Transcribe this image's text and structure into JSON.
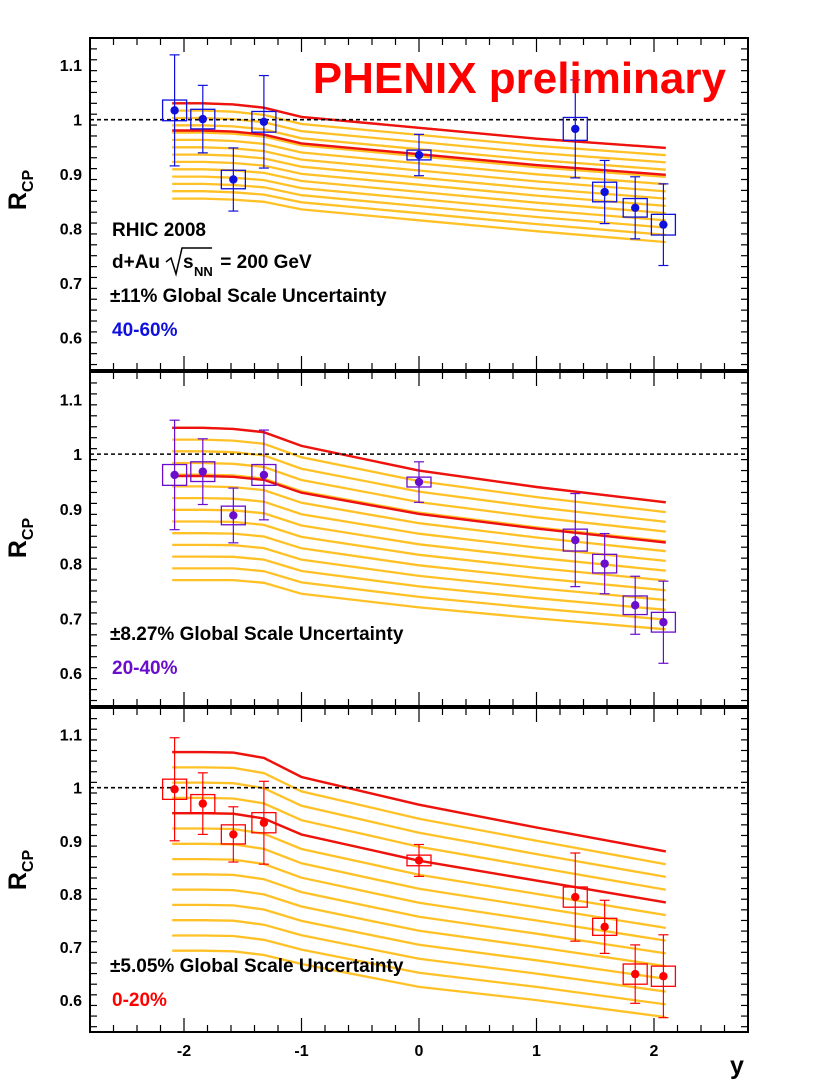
{
  "figure_label": "PHENIX preliminary",
  "colors": {
    "frame": "#000000",
    "band": "#FFC125",
    "band_edge": "#EE1111",
    "label_red": "#FF0000",
    "peripheral": "#1010DD",
    "mid": "#6A0DCC",
    "central": "#FF0000"
  },
  "chart_data": [
    {
      "type": "scatter",
      "panel": "40-60%",
      "ylabel_main": "R",
      "ylabel_sub": "CP",
      "ylim": [
        0.54,
        1.15
      ],
      "xlim": [
        -2.8,
        2.8
      ],
      "yticks": [
        0.6,
        0.7,
        0.8,
        0.9,
        1.0,
        1.1
      ],
      "ytick_labels": [
        "0.6",
        "0.7",
        "0.8",
        "0.9",
        "1",
        "1.1"
      ],
      "reference_line": 1.0,
      "text_lines": [
        "RHIC 2008",
        "d+Au",
        "s",
        "NN",
        " = 200 GeV",
        "±11% Global Scale Uncertainty"
      ],
      "centrality_label": "40-60%",
      "x": [
        -2.08,
        -1.84,
        -1.58,
        -1.32,
        0.0,
        1.33,
        1.58,
        1.84,
        2.08
      ],
      "y": [
        1.017,
        1.001,
        0.89,
        0.996,
        0.935,
        0.983,
        0.867,
        0.838,
        0.807
      ],
      "stat_err": [
        0.102,
        0.062,
        0.058,
        0.085,
        0.038,
        0.09,
        0.058,
        0.057,
        0.075
      ],
      "sys_err": [
        0.019,
        0.018,
        0.017,
        0.019,
        0.009,
        0.021,
        0.018,
        0.017,
        0.019
      ],
      "band": {
        "x": [
          -2.1,
          -1.84,
          -1.58,
          -1.32,
          -1.0,
          0.0,
          1.0,
          2.1
        ],
        "upper": [
          1.03,
          1.03,
          1.028,
          1.022,
          1.005,
          0.985,
          0.965,
          0.948
        ],
        "lower": [
          0.855,
          0.855,
          0.853,
          0.849,
          0.835,
          0.815,
          0.795,
          0.775
        ],
        "edges": [
          1.03,
          0.98
        ]
      }
    },
    {
      "type": "scatter",
      "panel": "20-40%",
      "ylabel_main": "R",
      "ylabel_sub": "CP",
      "ylim": [
        0.54,
        1.15
      ],
      "xlim": [
        -2.8,
        2.8
      ],
      "yticks": [
        0.6,
        0.7,
        0.8,
        0.9,
        1.0,
        1.1
      ],
      "ytick_labels": [
        "0.6",
        "0.7",
        "0.8",
        "0.9",
        "1",
        "1.1"
      ],
      "reference_line": 1.0,
      "text_lines": [
        "±8.27% Global Scale Uncertainty"
      ],
      "centrality_label": "20-40%",
      "x": [
        -2.08,
        -1.84,
        -1.58,
        -1.32,
        0.0,
        1.33,
        1.58,
        1.84,
        2.08
      ],
      "y": [
        0.962,
        0.968,
        0.888,
        0.962,
        0.949,
        0.843,
        0.8,
        0.724,
        0.693
      ],
      "stat_err": [
        0.1,
        0.06,
        0.05,
        0.082,
        0.037,
        0.085,
        0.055,
        0.053,
        0.075
      ],
      "sys_err": [
        0.019,
        0.018,
        0.017,
        0.019,
        0.009,
        0.02,
        0.017,
        0.017,
        0.018
      ],
      "band": {
        "x": [
          -2.1,
          -1.84,
          -1.58,
          -1.32,
          -1.0,
          0.0,
          1.0,
          2.1
        ],
        "upper": [
          1.048,
          1.048,
          1.046,
          1.04,
          1.015,
          0.97,
          0.94,
          0.912
        ],
        "lower": [
          0.77,
          0.77,
          0.77,
          0.765,
          0.745,
          0.72,
          0.7,
          0.68
        ],
        "edges": [
          1.048,
          0.96
        ]
      }
    },
    {
      "type": "scatter",
      "panel": "0-20%",
      "ylabel_main": "R",
      "ylabel_sub": "CP",
      "xlabel": "y",
      "ylim": [
        0.54,
        1.15
      ],
      "xlim": [
        -2.8,
        2.8
      ],
      "xticks": [
        -2,
        -1,
        0,
        1,
        2
      ],
      "xtick_labels": [
        "-2",
        "-1",
        "0",
        "1",
        "2"
      ],
      "yticks": [
        0.6,
        0.7,
        0.8,
        0.9,
        1.0,
        1.1
      ],
      "ytick_labels": [
        "0.6",
        "0.7",
        "0.8",
        "0.9",
        "1",
        "1.1"
      ],
      "reference_line": 1.0,
      "text_lines": [
        "±5.05% Global Scale Uncertainty"
      ],
      "centrality_label": "0-20%",
      "x": [
        -2.08,
        -1.84,
        -1.58,
        -1.32,
        0.0,
        1.33,
        1.58,
        1.84,
        2.08
      ],
      "y": [
        0.997,
        0.97,
        0.912,
        0.934,
        0.863,
        0.794,
        0.738,
        0.649,
        0.645
      ],
      "stat_err": [
        0.097,
        0.058,
        0.052,
        0.078,
        0.03,
        0.083,
        0.05,
        0.055,
        0.078
      ],
      "sys_err": [
        0.019,
        0.017,
        0.018,
        0.019,
        0.01,
        0.019,
        0.016,
        0.019,
        0.019
      ],
      "band": {
        "x": [
          -2.1,
          -1.84,
          -1.58,
          -1.32,
          -1.0,
          0.0,
          1.0,
          2.1
        ],
        "upper": [
          1.067,
          1.067,
          1.066,
          1.056,
          1.02,
          0.968,
          0.925,
          0.88
        ],
        "lower": [
          0.693,
          0.693,
          0.692,
          0.685,
          0.668,
          0.625,
          0.6,
          0.568
        ],
        "edges": [
          1.067,
          0.952
        ]
      }
    }
  ]
}
